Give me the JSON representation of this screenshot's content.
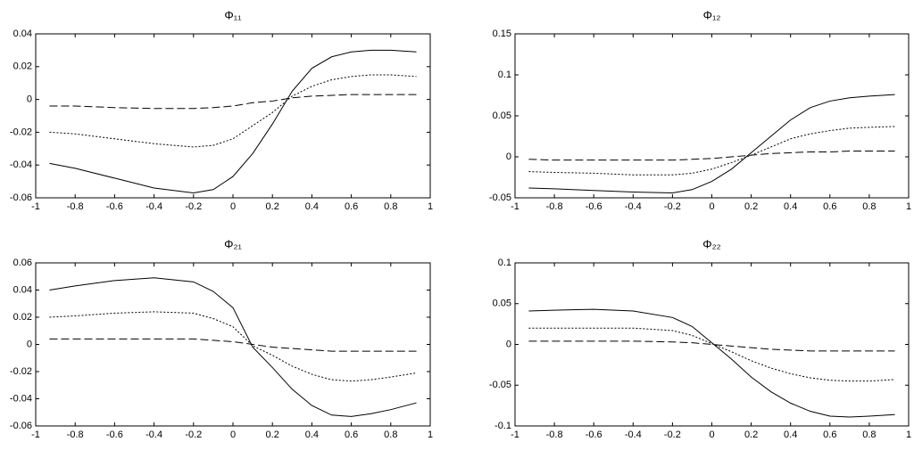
{
  "chart_data": [
    {
      "type": "line",
      "title": "Φ₁₁",
      "x": [
        -0.93,
        -0.8,
        -0.6,
        -0.4,
        -0.2,
        -0.1,
        0,
        0.1,
        0.2,
        0.3,
        0.4,
        0.5,
        0.6,
        0.7,
        0.8,
        0.93
      ],
      "xlim": [
        -1,
        1
      ],
      "xticks": [
        -1,
        -0.8,
        -0.6,
        -0.4,
        -0.2,
        0,
        0.2,
        0.4,
        0.6,
        0.8,
        1
      ],
      "ylim": [
        -0.06,
        0.04
      ],
      "yticks": [
        -0.06,
        -0.04,
        -0.02,
        0,
        0.02,
        0.04
      ],
      "series": [
        {
          "color": "#000000",
          "dash": "solid",
          "values": [
            -0.039,
            -0.042,
            -0.048,
            -0.054,
            -0.057,
            -0.055,
            -0.047,
            -0.033,
            -0.015,
            0.005,
            0.019,
            0.026,
            0.029,
            0.03,
            0.03,
            0.029
          ]
        },
        {
          "color": "#000000",
          "dash": "dotted",
          "values": [
            -0.02,
            -0.021,
            -0.024,
            -0.027,
            -0.029,
            -0.028,
            -0.024,
            -0.016,
            -0.008,
            0.002,
            0.008,
            0.012,
            0.014,
            0.015,
            0.015,
            0.014
          ]
        },
        {
          "color": "#000000",
          "dash": "dashed",
          "values": [
            -0.004,
            -0.004,
            -0.005,
            -0.0055,
            -0.0055,
            -0.005,
            -0.004,
            -0.002,
            -0.001,
            0.001,
            0.002,
            0.0025,
            0.003,
            0.003,
            0.003,
            0.003
          ]
        }
      ]
    },
    {
      "type": "line",
      "title": "Φ₁₂",
      "x": [
        -0.93,
        -0.8,
        -0.6,
        -0.4,
        -0.2,
        -0.1,
        0,
        0.1,
        0.2,
        0.3,
        0.4,
        0.5,
        0.6,
        0.7,
        0.8,
        0.93
      ],
      "xlim": [
        -1,
        1
      ],
      "xticks": [
        -1,
        -0.8,
        -0.6,
        -0.4,
        -0.2,
        0,
        0.2,
        0.4,
        0.6,
        0.8,
        1
      ],
      "ylim": [
        -0.05,
        0.15
      ],
      "yticks": [
        -0.05,
        0,
        0.05,
        0.1,
        0.15
      ],
      "series": [
        {
          "color": "#000000",
          "dash": "solid",
          "values": [
            -0.038,
            -0.039,
            -0.041,
            -0.043,
            -0.044,
            -0.04,
            -0.03,
            -0.015,
            0.005,
            0.025,
            0.045,
            0.06,
            0.068,
            0.072,
            0.074,
            0.076
          ]
        },
        {
          "color": "#000000",
          "dash": "dotted",
          "values": [
            -0.018,
            -0.019,
            -0.02,
            -0.022,
            -0.022,
            -0.02,
            -0.015,
            -0.007,
            0.002,
            0.012,
            0.022,
            0.028,
            0.032,
            0.035,
            0.036,
            0.037
          ]
        },
        {
          "color": "#000000",
          "dash": "dashed",
          "values": [
            -0.003,
            -0.004,
            -0.004,
            -0.004,
            -0.004,
            -0.003,
            -0.002,
            0,
            0.002,
            0.004,
            0.005,
            0.006,
            0.006,
            0.007,
            0.007,
            0.007
          ]
        }
      ]
    },
    {
      "type": "line",
      "title": "Φ₂₁",
      "x": [
        -0.93,
        -0.8,
        -0.6,
        -0.4,
        -0.2,
        -0.1,
        0,
        0.1,
        0.2,
        0.3,
        0.4,
        0.5,
        0.6,
        0.7,
        0.8,
        0.93
      ],
      "xlim": [
        -1,
        1
      ],
      "xticks": [
        -1,
        -0.8,
        -0.6,
        -0.4,
        -0.2,
        0,
        0.2,
        0.4,
        0.6,
        0.8,
        1
      ],
      "ylim": [
        -0.06,
        0.06
      ],
      "yticks": [
        -0.06,
        -0.04,
        -0.02,
        0,
        0.02,
        0.04,
        0.06
      ],
      "series": [
        {
          "color": "#000000",
          "dash": "solid",
          "values": [
            0.04,
            0.043,
            0.047,
            0.049,
            0.046,
            0.039,
            0.027,
            -0.002,
            -0.017,
            -0.033,
            -0.045,
            -0.052,
            -0.053,
            -0.051,
            -0.048,
            -0.043
          ]
        },
        {
          "color": "#000000",
          "dash": "dotted",
          "values": [
            0.02,
            0.021,
            0.023,
            0.024,
            0.023,
            0.019,
            0.013,
            -0.001,
            -0.008,
            -0.016,
            -0.022,
            -0.026,
            -0.027,
            -0.026,
            -0.024,
            -0.021
          ]
        },
        {
          "color": "#000000",
          "dash": "dashed",
          "values": [
            0.004,
            0.004,
            0.004,
            0.004,
            0.004,
            0.003,
            0.002,
            0,
            -0.002,
            -0.003,
            -0.004,
            -0.005,
            -0.005,
            -0.005,
            -0.005,
            -0.005
          ]
        }
      ]
    },
    {
      "type": "line",
      "title": "Φ₂₂",
      "x": [
        -0.93,
        -0.8,
        -0.6,
        -0.4,
        -0.2,
        -0.1,
        0,
        0.1,
        0.2,
        0.3,
        0.4,
        0.5,
        0.6,
        0.7,
        0.8,
        0.93
      ],
      "xlim": [
        -1,
        1
      ],
      "xticks": [
        -1,
        -0.8,
        -0.6,
        -0.4,
        -0.2,
        0,
        0.2,
        0.4,
        0.6,
        0.8,
        1
      ],
      "ylim": [
        -0.1,
        0.1
      ],
      "yticks": [
        -0.1,
        -0.05,
        0,
        0.05,
        0.1
      ],
      "series": [
        {
          "color": "#000000",
          "dash": "solid",
          "values": [
            0.041,
            0.042,
            0.043,
            0.041,
            0.033,
            0.022,
            0.002,
            -0.018,
            -0.04,
            -0.058,
            -0.072,
            -0.082,
            -0.088,
            -0.089,
            -0.088,
            -0.086
          ]
        },
        {
          "color": "#000000",
          "dash": "dotted",
          "values": [
            0.02,
            0.02,
            0.02,
            0.02,
            0.017,
            0.011,
            0.001,
            -0.009,
            -0.02,
            -0.029,
            -0.036,
            -0.041,
            -0.044,
            -0.045,
            -0.045,
            -0.043
          ]
        },
        {
          "color": "#000000",
          "dash": "dashed",
          "values": [
            0.004,
            0.004,
            0.004,
            0.004,
            0.003,
            0.002,
            0,
            -0.002,
            -0.004,
            -0.006,
            -0.007,
            -0.008,
            -0.008,
            -0.008,
            -0.008,
            -0.008
          ]
        }
      ]
    }
  ]
}
